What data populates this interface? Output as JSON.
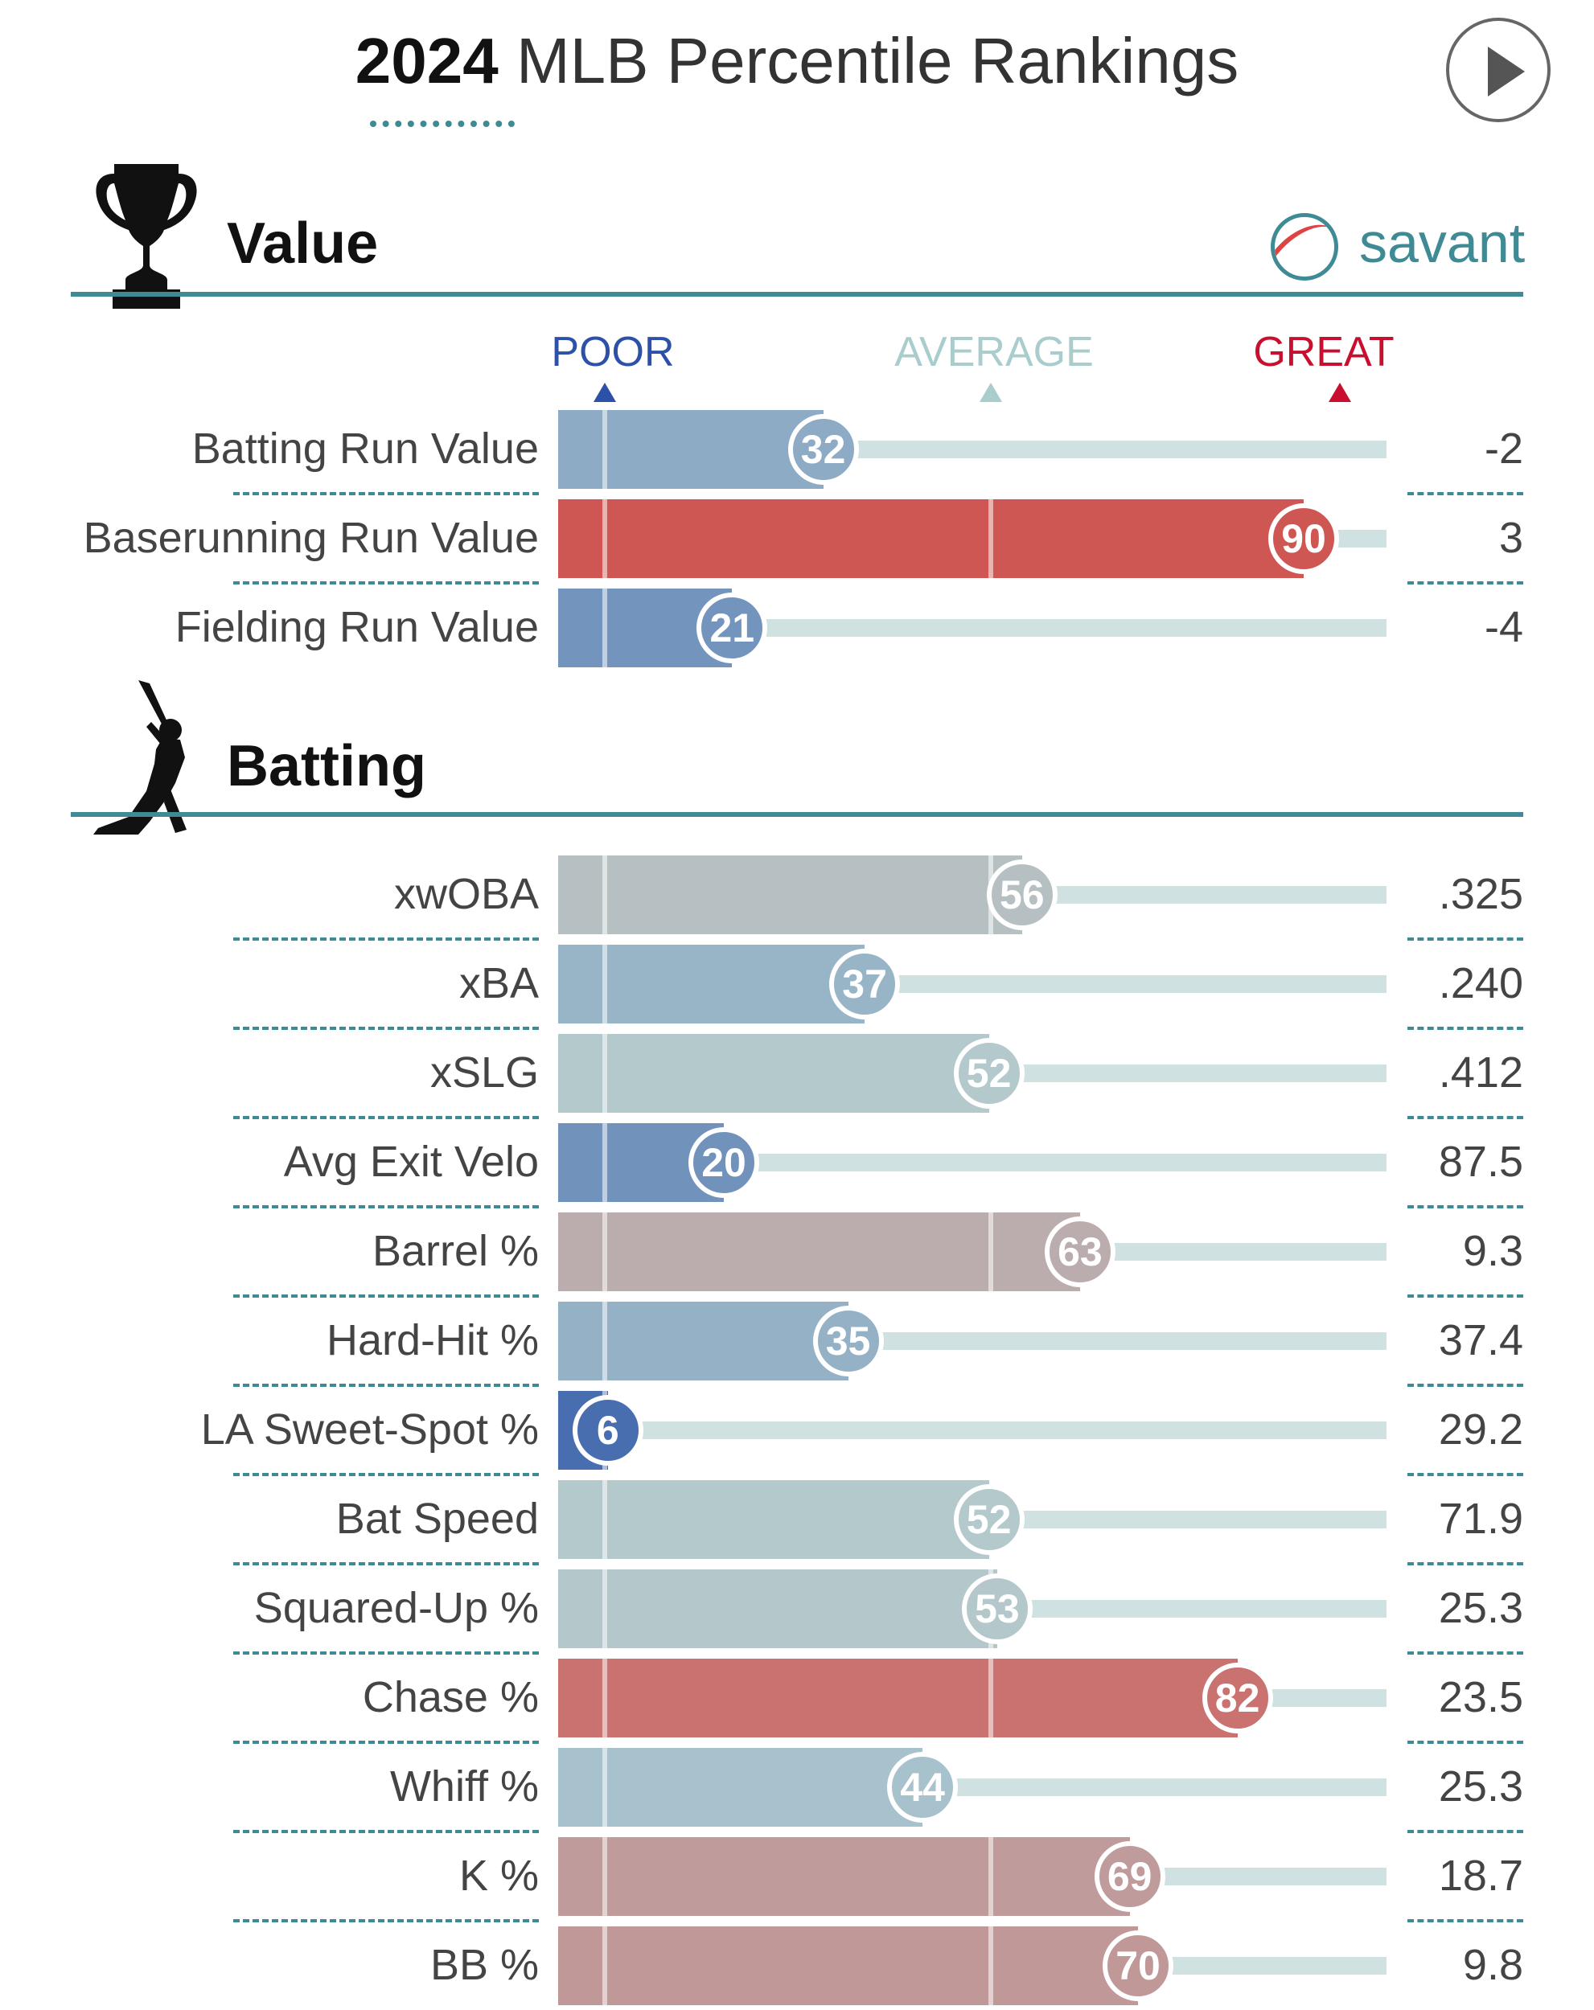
{
  "header": {
    "title_year": "2024",
    "title_rest": "MLB Percentile Rankings",
    "play_button": "play-icon"
  },
  "brand": {
    "logo_text": "savant",
    "icon": "baseball-icon"
  },
  "scale": {
    "poor": "POOR",
    "average": "AVERAGE",
    "great": "GREAT",
    "poor_color": "#2d50a8",
    "average_color": "#a9cccc",
    "great_color": "#c8102e"
  },
  "chart_data": {
    "type": "bar",
    "title": "2024 MLB Percentile Rankings",
    "xlim": [
      0,
      100
    ],
    "sections": [
      {
        "name": "Value",
        "icon": "trophy-icon",
        "rows": [
          {
            "label": "Batting Run Value",
            "percentile": 32,
            "value": "-2"
          },
          {
            "label": "Baserunning Run Value",
            "percentile": 90,
            "value": "3"
          },
          {
            "label": "Fielding Run Value",
            "percentile": 21,
            "value": "-4"
          }
        ]
      },
      {
        "name": "Batting",
        "icon": "batter-icon",
        "rows": [
          {
            "label": "xwOBA",
            "percentile": 56,
            "value": ".325"
          },
          {
            "label": "xBA",
            "percentile": 37,
            "value": ".240"
          },
          {
            "label": "xSLG",
            "percentile": 52,
            "value": ".412"
          },
          {
            "label": "Avg Exit Velo",
            "percentile": 20,
            "value": "87.5"
          },
          {
            "label": "Barrel %",
            "percentile": 63,
            "value": "9.3"
          },
          {
            "label": "Hard-Hit %",
            "percentile": 35,
            "value": "37.4"
          },
          {
            "label": "LA Sweet-Spot %",
            "percentile": 6,
            "value": "29.2"
          },
          {
            "label": "Bat Speed",
            "percentile": 52,
            "value": "71.9"
          },
          {
            "label": "Squared-Up %",
            "percentile": 53,
            "value": "25.3"
          },
          {
            "label": "Chase %",
            "percentile": 82,
            "value": "23.5"
          },
          {
            "label": "Whiff %",
            "percentile": 44,
            "value": "25.3"
          },
          {
            "label": "K %",
            "percentile": 69,
            "value": "18.7"
          },
          {
            "label": "BB %",
            "percentile": 70,
            "value": "9.8"
          }
        ]
      }
    ]
  }
}
